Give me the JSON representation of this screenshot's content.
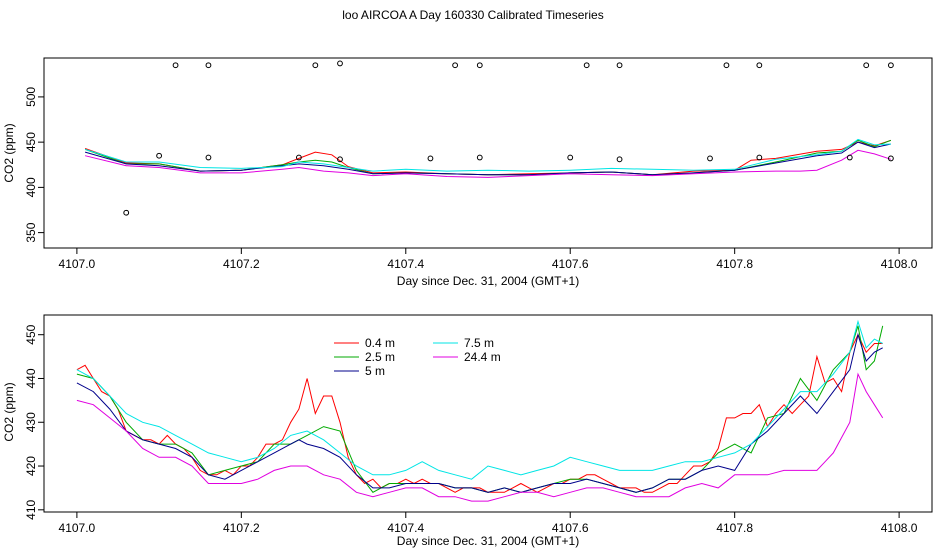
{
  "figure": {
    "title": "loo AIRCOA A  Day 160330  Calibrated Timeseries"
  },
  "chart_data": [
    {
      "type": "line",
      "title": "loo AIRCOA A  Day 160330  Calibrated Timeseries",
      "xlabel": "Day since Dec. 31, 2004 (GMT+1)",
      "ylabel": "CO2 (ppm)",
      "xlim": [
        4106.96,
        4108.04
      ],
      "ylim": [
        333,
        543
      ],
      "xticks": [
        "4107.0",
        "4107.2",
        "4107.4",
        "4107.6",
        "4107.8",
        "4108.0"
      ],
      "yticks": [
        "350",
        "400",
        "450",
        "500"
      ],
      "series": [
        {
          "color": "#ff0000",
          "x": [
            4107.01,
            4107.06,
            4107.1,
            4107.15,
            4107.2,
            4107.25,
            4107.27,
            4107.29,
            4107.31,
            4107.33,
            4107.36,
            4107.4,
            4107.45,
            4107.5,
            4107.55,
            4107.6,
            4107.65,
            4107.7,
            4107.75,
            4107.8,
            4107.82,
            4107.85,
            4107.9,
            4107.93,
            4107.95,
            4107.97,
            4107.99
          ],
          "y": [
            443,
            427,
            426,
            418,
            419,
            425,
            432,
            439,
            436,
            423,
            416,
            417,
            415,
            414,
            415,
            416,
            417,
            414,
            418,
            419,
            430,
            432,
            440,
            442,
            450,
            446,
            452
          ]
        },
        {
          "color": "#00aa00",
          "x": [
            4107.01,
            4107.06,
            4107.1,
            4107.15,
            4107.2,
            4107.25,
            4107.27,
            4107.29,
            4107.31,
            4107.33,
            4107.36,
            4107.4,
            4107.45,
            4107.5,
            4107.55,
            4107.6,
            4107.65,
            4107.7,
            4107.75,
            4107.8,
            4107.85,
            4107.9,
            4107.93,
            4107.95,
            4107.97,
            4107.99
          ],
          "y": [
            442,
            426,
            426,
            418,
            419,
            425,
            428,
            430,
            428,
            422,
            415,
            416,
            415,
            414,
            414,
            416,
            417,
            414,
            416,
            419,
            428,
            438,
            440,
            452,
            445,
            452
          ]
        },
        {
          "color": "#00008b",
          "x": [
            4107.01,
            4107.06,
            4107.1,
            4107.15,
            4107.2,
            4107.25,
            4107.27,
            4107.3,
            4107.33,
            4107.36,
            4107.4,
            4107.45,
            4107.5,
            4107.55,
            4107.6,
            4107.65,
            4107.7,
            4107.75,
            4107.8,
            4107.85,
            4107.9,
            4107.93,
            4107.95,
            4107.97,
            4107.99
          ],
          "y": [
            439,
            426,
            424,
            418,
            419,
            424,
            426,
            424,
            420,
            415,
            416,
            415,
            414,
            414,
            416,
            417,
            414,
            416,
            419,
            427,
            435,
            438,
            450,
            444,
            448
          ]
        },
        {
          "color": "#00e5e5",
          "x": [
            4107.01,
            4107.06,
            4107.1,
            4107.15,
            4107.2,
            4107.25,
            4107.27,
            4107.3,
            4107.33,
            4107.36,
            4107.4,
            4107.45,
            4107.5,
            4107.55,
            4107.6,
            4107.65,
            4107.7,
            4107.75,
            4107.8,
            4107.85,
            4107.9,
            4107.93,
            4107.95,
            4107.97,
            4107.99
          ],
          "y": [
            442,
            428,
            428,
            422,
            421,
            423,
            428,
            426,
            422,
            418,
            420,
            418,
            419,
            418,
            419,
            421,
            420,
            419,
            420,
            431,
            436,
            440,
            453,
            447,
            448
          ]
        },
        {
          "color": "#e000e0",
          "x": [
            4107.01,
            4107.06,
            4107.1,
            4107.15,
            4107.2,
            4107.25,
            4107.27,
            4107.3,
            4107.33,
            4107.36,
            4107.4,
            4107.45,
            4107.5,
            4107.55,
            4107.6,
            4107.65,
            4107.7,
            4107.75,
            4107.8,
            4107.85,
            4107.88,
            4107.9,
            4107.93,
            4107.95,
            4107.97,
            4107.99
          ],
          "y": [
            435,
            424,
            422,
            416,
            416,
            420,
            422,
            418,
            416,
            413,
            415,
            412,
            411,
            413,
            415,
            414,
            413,
            415,
            417,
            418,
            418,
            419,
            430,
            441,
            437,
            431
          ]
        }
      ],
      "outliers": {
        "x": [
          4107.06,
          4107.1,
          4107.12,
          4107.16,
          4107.16,
          4107.27,
          4107.29,
          4107.32,
          4107.32,
          4107.43,
          4107.46,
          4107.49,
          4107.49,
          4107.6,
          4107.62,
          4107.66,
          4107.66,
          4107.77,
          4107.79,
          4107.83,
          4107.83,
          4107.94,
          4107.96,
          4107.99,
          4107.99
        ],
        "y": [
          372,
          435,
          535,
          433,
          535,
          433,
          535,
          431,
          537,
          432,
          535,
          433,
          535,
          433,
          535,
          431,
          535,
          432,
          535,
          433,
          535,
          433,
          535,
          432,
          535
        ]
      }
    },
    {
      "type": "line",
      "xlabel": "Day since Dec. 31, 2004 (GMT+1)",
      "ylabel": "CO2 (ppm)",
      "xlim": [
        4106.96,
        4108.04
      ],
      "ylim": [
        409.5,
        454.5
      ],
      "xticks": [
        "4107.0",
        "4107.2",
        "4107.4",
        "4107.6",
        "4107.8",
        "4108.0"
      ],
      "yticks": [
        "410",
        "420",
        "430",
        "440",
        "450"
      ],
      "legend_position": "top-center",
      "series": [
        {
          "name": "0.4 m",
          "color": "#ff0000",
          "x": [
            4107.0,
            4107.01,
            4107.02,
            4107.03,
            4107.04,
            4107.05,
            4107.06,
            4107.07,
            4107.08,
            4107.09,
            4107.1,
            4107.11,
            4107.12,
            4107.13,
            4107.14,
            4107.15,
            4107.16,
            4107.17,
            4107.18,
            4107.19,
            4107.2,
            4107.21,
            4107.22,
            4107.23,
            4107.24,
            4107.25,
            4107.26,
            4107.27,
            4107.28,
            4107.29,
            4107.3,
            4107.31,
            4107.32,
            4107.33,
            4107.34,
            4107.35,
            4107.36,
            4107.37,
            4107.38,
            4107.39,
            4107.4,
            4107.41,
            4107.42,
            4107.43,
            4107.44,
            4107.45,
            4107.46,
            4107.47,
            4107.48,
            4107.49,
            4107.5,
            4107.51,
            4107.52,
            4107.53,
            4107.54,
            4107.55,
            4107.56,
            4107.57,
            4107.58,
            4107.59,
            4107.6,
            4107.61,
            4107.62,
            4107.63,
            4107.64,
            4107.65,
            4107.66,
            4107.67,
            4107.68,
            4107.69,
            4107.7,
            4107.71,
            4107.72,
            4107.73,
            4107.74,
            4107.75,
            4107.76,
            4107.77,
            4107.78,
            4107.79,
            4107.8,
            4107.81,
            4107.82,
            4107.83,
            4107.84,
            4107.85,
            4107.86,
            4107.87,
            4107.88,
            4107.89,
            4107.9,
            4107.91,
            4107.92,
            4107.93,
            4107.94,
            4107.95,
            4107.96,
            4107.97,
            4107.98
          ],
          "y": [
            442,
            443,
            440,
            437,
            436,
            433,
            428,
            427,
            426,
            426,
            425,
            427,
            425,
            424,
            422,
            419,
            418,
            418,
            419,
            418,
            420,
            420,
            422,
            425,
            425,
            426,
            430,
            433,
            440,
            432,
            436,
            436,
            430,
            422,
            418,
            416,
            417,
            415,
            416,
            416,
            417,
            416,
            417,
            416,
            416,
            415,
            414,
            415,
            415,
            415,
            414,
            414,
            414,
            415,
            416,
            415,
            414,
            415,
            416,
            416,
            417,
            417,
            418,
            418,
            417,
            416,
            415,
            415,
            415,
            414,
            414,
            415,
            416,
            416,
            418,
            420,
            420,
            421,
            424,
            431,
            431,
            432,
            432,
            434,
            429,
            432,
            434,
            432,
            434,
            436,
            445,
            439,
            440,
            437,
            446,
            450,
            446,
            448,
            448
          ]
        },
        {
          "name": "2.5 m",
          "color": "#00aa00",
          "x": [
            4107.0,
            4107.02,
            4107.04,
            4107.06,
            4107.08,
            4107.1,
            4107.12,
            4107.14,
            4107.16,
            4107.18,
            4107.2,
            4107.22,
            4107.24,
            4107.26,
            4107.28,
            4107.3,
            4107.32,
            4107.34,
            4107.36,
            4107.38,
            4107.4,
            4107.42,
            4107.44,
            4107.46,
            4107.48,
            4107.5,
            4107.52,
            4107.54,
            4107.56,
            4107.58,
            4107.6,
            4107.62,
            4107.64,
            4107.66,
            4107.68,
            4107.7,
            4107.72,
            4107.74,
            4107.76,
            4107.78,
            4107.8,
            4107.82,
            4107.84,
            4107.86,
            4107.88,
            4107.9,
            4107.92,
            4107.94,
            4107.95,
            4107.96,
            4107.97,
            4107.98
          ],
          "y": [
            441,
            440,
            436,
            430,
            426,
            425,
            425,
            423,
            418,
            419,
            420,
            421,
            425,
            425,
            427,
            429,
            428,
            419,
            414,
            416,
            416,
            416,
            416,
            415,
            415,
            414,
            415,
            414,
            415,
            416,
            417,
            417,
            416,
            415,
            414,
            415,
            417,
            417,
            419,
            423,
            425,
            423,
            431,
            432,
            440,
            435,
            442,
            446,
            452,
            442,
            444,
            452
          ]
        },
        {
          "name": "5 m",
          "color": "#00008b",
          "x": [
            4107.0,
            4107.02,
            4107.04,
            4107.06,
            4107.08,
            4107.1,
            4107.12,
            4107.14,
            4107.16,
            4107.18,
            4107.2,
            4107.22,
            4107.24,
            4107.26,
            4107.27,
            4107.28,
            4107.3,
            4107.32,
            4107.34,
            4107.36,
            4107.38,
            4107.4,
            4107.42,
            4107.44,
            4107.46,
            4107.48,
            4107.5,
            4107.52,
            4107.54,
            4107.56,
            4107.58,
            4107.6,
            4107.62,
            4107.64,
            4107.66,
            4107.68,
            4107.7,
            4107.72,
            4107.74,
            4107.76,
            4107.78,
            4107.8,
            4107.82,
            4107.84,
            4107.86,
            4107.88,
            4107.9,
            4107.92,
            4107.94,
            4107.95,
            4107.96,
            4107.97,
            4107.98
          ],
          "y": [
            439,
            437,
            433,
            428,
            426,
            425,
            424,
            422,
            418,
            417,
            419,
            421,
            423,
            425,
            426,
            425,
            424,
            422,
            418,
            415,
            415,
            416,
            416,
            416,
            415,
            415,
            414,
            415,
            414,
            415,
            416,
            416,
            417,
            416,
            415,
            414,
            415,
            417,
            417,
            419,
            420,
            419,
            425,
            428,
            432,
            436,
            432,
            437,
            442,
            450,
            444,
            446,
            447
          ]
        },
        {
          "name": "7.5 m",
          "color": "#00e5e5",
          "x": [
            4107.0,
            4107.02,
            4107.04,
            4107.06,
            4107.08,
            4107.1,
            4107.12,
            4107.14,
            4107.16,
            4107.18,
            4107.2,
            4107.22,
            4107.24,
            4107.26,
            4107.28,
            4107.3,
            4107.32,
            4107.34,
            4107.36,
            4107.38,
            4107.4,
            4107.42,
            4107.44,
            4107.46,
            4107.48,
            4107.5,
            4107.52,
            4107.54,
            4107.56,
            4107.58,
            4107.6,
            4107.62,
            4107.64,
            4107.66,
            4107.68,
            4107.7,
            4107.72,
            4107.74,
            4107.76,
            4107.78,
            4107.8,
            4107.82,
            4107.84,
            4107.86,
            4107.88,
            4107.9,
            4107.92,
            4107.94,
            4107.95,
            4107.96,
            4107.97,
            4107.98
          ],
          "y": [
            442,
            440,
            436,
            432,
            430,
            429,
            427,
            425,
            423,
            422,
            421,
            422,
            424,
            427,
            428,
            426,
            423,
            420,
            418,
            418,
            419,
            421,
            419,
            418,
            417,
            420,
            419,
            418,
            419,
            420,
            422,
            421,
            420,
            419,
            419,
            419,
            420,
            421,
            421,
            422,
            423,
            425,
            429,
            433,
            437,
            437,
            441,
            446,
            453,
            447,
            449,
            448
          ]
        },
        {
          "name": "24.4 m",
          "color": "#e000e0",
          "x": [
            4107.0,
            4107.02,
            4107.04,
            4107.06,
            4107.08,
            4107.1,
            4107.12,
            4107.14,
            4107.16,
            4107.18,
            4107.2,
            4107.22,
            4107.24,
            4107.26,
            4107.28,
            4107.3,
            4107.32,
            4107.34,
            4107.36,
            4107.38,
            4107.4,
            4107.42,
            4107.44,
            4107.46,
            4107.48,
            4107.5,
            4107.52,
            4107.54,
            4107.56,
            4107.58,
            4107.6,
            4107.62,
            4107.64,
            4107.66,
            4107.68,
            4107.7,
            4107.72,
            4107.74,
            4107.76,
            4107.78,
            4107.8,
            4107.82,
            4107.84,
            4107.86,
            4107.88,
            4107.9,
            4107.91,
            4107.92,
            4107.94,
            4107.95,
            4107.96,
            4107.97,
            4107.98
          ],
          "y": [
            435,
            434,
            431,
            428,
            424,
            422,
            422,
            420,
            416,
            416,
            416,
            417,
            419,
            420,
            420,
            418,
            417,
            414,
            413,
            414,
            415,
            415,
            413,
            413,
            412,
            412,
            413,
            414,
            414,
            413,
            414,
            415,
            415,
            414,
            413,
            413,
            413,
            415,
            416,
            415,
            418,
            418,
            418,
            419,
            419,
            419,
            421,
            423,
            430,
            441,
            437,
            434,
            431
          ]
        }
      ]
    }
  ]
}
